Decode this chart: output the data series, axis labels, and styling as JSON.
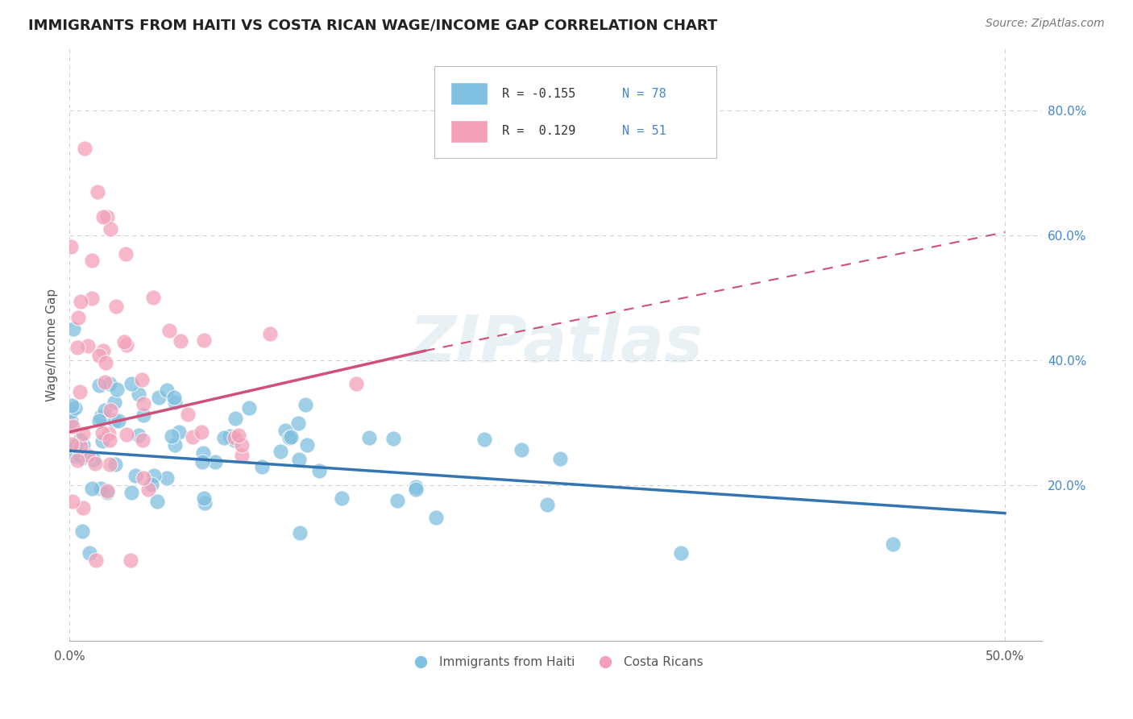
{
  "title": "IMMIGRANTS FROM HAITI VS COSTA RICAN WAGE/INCOME GAP CORRELATION CHART",
  "source": "Source: ZipAtlas.com",
  "ylabel": "Wage/Income Gap",
  "xlim": [
    0.0,
    0.52
  ],
  "ylim": [
    -0.05,
    0.9
  ],
  "ytick_labels_right": [
    "80.0%",
    "60.0%",
    "40.0%",
    "20.0%"
  ],
  "ytick_positions_right": [
    0.8,
    0.6,
    0.4,
    0.2
  ],
  "blue_color": "#7fbfdf",
  "pink_color": "#f4a0b8",
  "trend_blue": "#3375b0",
  "trend_pink": "#d0507a",
  "trend_pink_dashed": "#d0507a",
  "text_blue": "#4488cc",
  "watermark": "ZIPatlas",
  "background": "#ffffff",
  "grid_color": "#cccccc",
  "seed": 99,
  "haiti_n": 78,
  "costa_n": 51,
  "haiti_R": -0.155,
  "costa_R": 0.129,
  "blue_trend_y0": 0.255,
  "blue_trend_y1": 0.155,
  "pink_trend_y0": 0.285,
  "pink_trend_y1_solid": 0.415,
  "pink_trend_x1_solid": 0.19,
  "pink_trend_y1_dashed": 0.605,
  "pink_trend_x1_dashed": 0.5
}
